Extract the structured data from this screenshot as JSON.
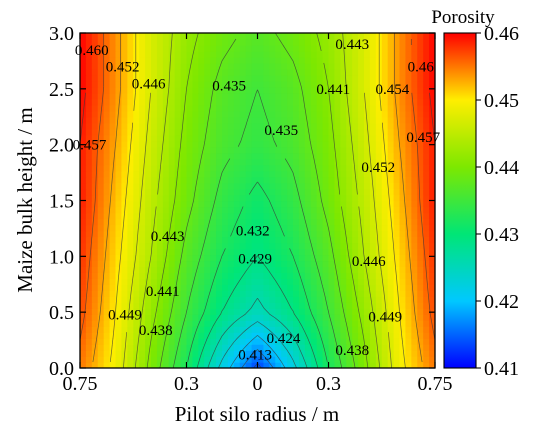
{
  "chart_data": {
    "type": "heatmap",
    "subtype": "filled-contour",
    "xlabel": "Pilot silo radius  / m",
    "ylabel": "Maize bulk height  / m",
    "x_range": [
      -0.75,
      0.75
    ],
    "y_range": [
      0.0,
      3.0
    ],
    "x_tick_values": [
      -0.75,
      -0.3,
      0,
      0.3,
      0.75
    ],
    "x_tick_labels": [
      "0.75",
      "0.3",
      "0",
      "0.3",
      "0.75"
    ],
    "y_tick_values": [
      0.0,
      0.5,
      1.0,
      1.5,
      2.0,
      2.5,
      3.0
    ],
    "y_tick_labels": [
      "0.0",
      "0.5",
      "1.0",
      "1.5",
      "2.0",
      "2.5",
      "3.0"
    ],
    "colorbar": {
      "title": "Porosity",
      "range": [
        0.41,
        0.46
      ],
      "tick_values": [
        0.41,
        0.42,
        0.43,
        0.44,
        0.45,
        0.46
      ],
      "tick_labels": [
        "0.41",
        "0.42",
        "0.43",
        "0.44",
        "0.45",
        "0.46"
      ],
      "colormap": "rainbow (blue-cyan-green-yellow-red)"
    },
    "contour_labels": [
      {
        "text": "0.460",
        "x": -0.7,
        "y": 2.85
      },
      {
        "text": "0.452",
        "x": -0.57,
        "y": 2.7
      },
      {
        "text": "0.446",
        "x": -0.46,
        "y": 2.55
      },
      {
        "text": "0.435",
        "x": -0.12,
        "y": 2.53
      },
      {
        "text": "0.443",
        "x": 0.4,
        "y": 2.9
      },
      {
        "text": "0.441",
        "x": 0.32,
        "y": 2.5
      },
      {
        "text": "0.454",
        "x": 0.57,
        "y": 2.5
      },
      {
        "text": "0.46",
        "x": 0.69,
        "y": 2.7
      },
      {
        "text": "0.435",
        "x": 0.1,
        "y": 2.13
      },
      {
        "text": "0.457",
        "x": -0.71,
        "y": 2.0
      },
      {
        "text": "0.457",
        "x": 0.7,
        "y": 2.07
      },
      {
        "text": "0.452",
        "x": 0.51,
        "y": 1.8
      },
      {
        "text": "0.443",
        "x": -0.38,
        "y": 1.18
      },
      {
        "text": "0.432",
        "x": -0.02,
        "y": 1.23
      },
      {
        "text": "0.429",
        "x": -0.01,
        "y": 0.98
      },
      {
        "text": "0.446",
        "x": 0.47,
        "y": 0.96
      },
      {
        "text": "0.441",
        "x": -0.4,
        "y": 0.69
      },
      {
        "text": "0.449",
        "x": -0.56,
        "y": 0.48
      },
      {
        "text": "0.438",
        "x": -0.43,
        "y": 0.34
      },
      {
        "text": "0.449",
        "x": 0.54,
        "y": 0.46
      },
      {
        "text": "0.424",
        "x": 0.11,
        "y": 0.27
      },
      {
        "text": "0.438",
        "x": 0.4,
        "y": 0.16
      },
      {
        "text": "0.413",
        "x": -0.01,
        "y": 0.12
      }
    ],
    "field_samples": {
      "note_values": "porosity values sampled along radius at selected heights",
      "x": [
        -0.75,
        -0.6,
        -0.45,
        -0.3,
        -0.15,
        0,
        0.15,
        0.3,
        0.45,
        0.6,
        0.75
      ],
      "y": [
        0.0,
        0.5,
        1.0,
        1.5,
        2.0,
        2.5,
        3.0
      ],
      "z": [
        [
          0.455,
          0.449,
          0.44,
          0.432,
          0.422,
          0.413,
          0.422,
          0.432,
          0.44,
          0.449,
          0.455
        ],
        [
          0.457,
          0.45,
          0.442,
          0.435,
          0.429,
          0.425,
          0.429,
          0.435,
          0.442,
          0.45,
          0.457
        ],
        [
          0.458,
          0.451,
          0.444,
          0.437,
          0.432,
          0.429,
          0.432,
          0.437,
          0.444,
          0.451,
          0.458
        ],
        [
          0.459,
          0.452,
          0.445,
          0.439,
          0.434,
          0.431,
          0.434,
          0.439,
          0.445,
          0.452,
          0.459
        ],
        [
          0.459,
          0.453,
          0.446,
          0.44,
          0.436,
          0.434,
          0.436,
          0.44,
          0.446,
          0.453,
          0.459
        ],
        [
          0.46,
          0.454,
          0.447,
          0.441,
          0.437,
          0.435,
          0.437,
          0.441,
          0.447,
          0.454,
          0.46
        ],
        [
          0.46,
          0.454,
          0.447,
          0.442,
          0.439,
          0.437,
          0.439,
          0.442,
          0.447,
          0.454,
          0.46
        ]
      ]
    }
  }
}
